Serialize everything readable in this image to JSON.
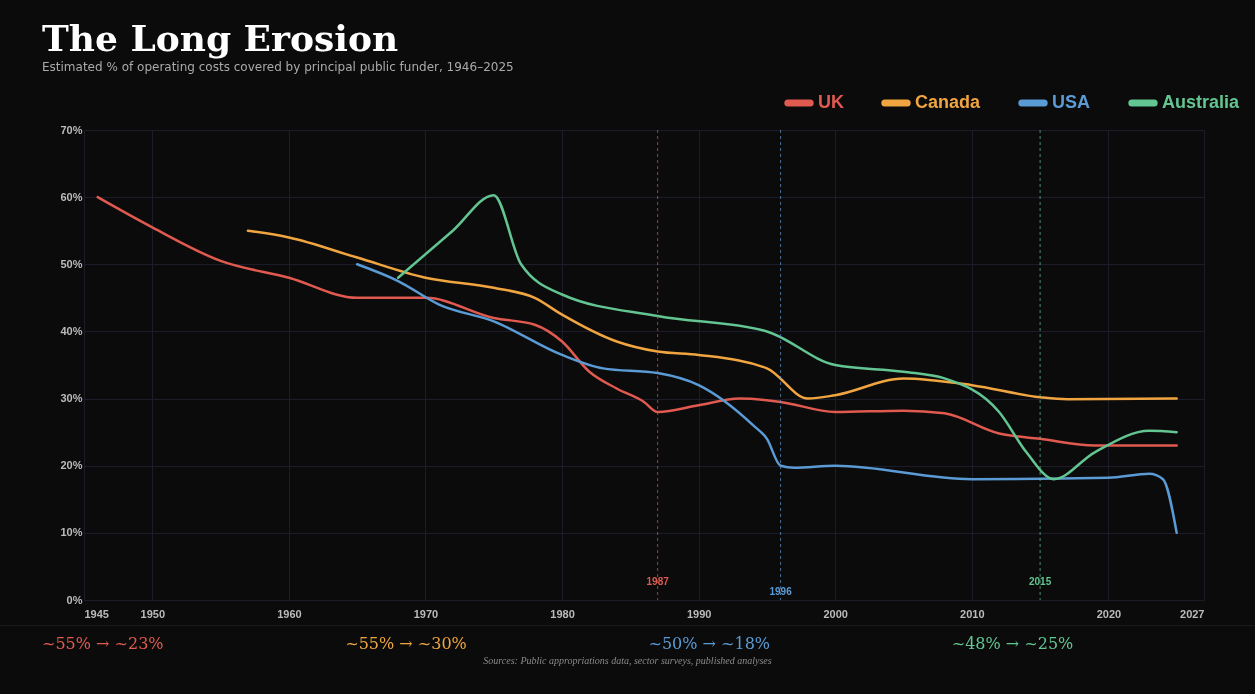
{
  "chart_data": {
    "type": "line",
    "title": "The Long Erosion",
    "subtitle": "Estimated % of operating costs covered by principal public funder, 1946–2025",
    "xlim": [
      1945,
      2027
    ],
    "xticks": [
      1945,
      1950,
      1960,
      1970,
      1980,
      1990,
      2000,
      2010,
      2020,
      2027
    ],
    "ylim": [
      0,
      70
    ],
    "yticks": [
      {
        "value": 0,
        "label": "0%"
      },
      {
        "value": 10,
        "label": "10%"
      },
      {
        "value": 20,
        "label": "20%"
      },
      {
        "value": 30,
        "label": "30%"
      },
      {
        "value": 40,
        "label": "40%"
      },
      {
        "value": 50,
        "label": "50%"
      },
      {
        "value": 60,
        "label": "60%"
      },
      {
        "value": 70,
        "label": "70%"
      }
    ],
    "grid": true,
    "legend": "top right",
    "line_style": "solid",
    "marker": "none",
    "series": [
      {
        "name": "UK",
        "color": "#e05a4f",
        "x": [
          1946,
          1950,
          1955,
          1960,
          1965,
          1970,
          1975,
          1978,
          1980,
          1982,
          1984,
          1986,
          1987,
          1990,
          1993,
          1996,
          2000,
          2005,
          2008,
          2012,
          2015,
          2019,
          2025
        ],
        "values": [
          60,
          55.5,
          50.5,
          48,
          45,
          45,
          42,
          41,
          38.5,
          34,
          31.5,
          29.5,
          28,
          29,
          30,
          29.5,
          28,
          28.2,
          27.8,
          24.8,
          24,
          23,
          23
        ]
      },
      {
        "name": "Canada",
        "color": "#f0a541",
        "x": [
          1957,
          1960,
          1965,
          1970,
          1975,
          1978,
          1980,
          1984,
          1987,
          1990,
          1995,
          1998,
          2000,
          2005,
          2010,
          2015,
          2017,
          2025
        ],
        "values": [
          55,
          54,
          51,
          48,
          46.5,
          45,
          42.5,
          38.5,
          37,
          36.5,
          34.5,
          30,
          30.5,
          33,
          32,
          30.2,
          29.9,
          30
        ]
      },
      {
        "name": "USA",
        "color": "#5b9bd5",
        "x": [
          1965,
          1968,
          1971,
          1975,
          1980,
          1983,
          1987,
          1990,
          1994,
          1995,
          1996,
          1997,
          2000,
          2010,
          2020,
          2023,
          2024,
          2025
        ],
        "values": [
          50,
          47.5,
          44,
          41.5,
          36.5,
          34.5,
          33.8,
          32,
          26,
          24,
          20,
          19.7,
          20,
          18,
          18.2,
          18.8,
          18,
          10
        ]
      },
      {
        "name": "Australia",
        "color": "#63c591",
        "x": [
          1968,
          1972,
          1975,
          1977,
          1980,
          1987,
          1995,
          2000,
          2005,
          2008,
          2012,
          2014,
          2016,
          2019,
          2023,
          2025
        ],
        "values": [
          48,
          55,
          60.3,
          50,
          45.5,
          42.3,
          40,
          35,
          34,
          33,
          28,
          22,
          18,
          22,
          25.2,
          25
        ]
      }
    ],
    "ref_lines": [
      {
        "axis": "x",
        "value": 1987,
        "label": "1987",
        "color": "#e05a4f",
        "line_style": "dashed"
      },
      {
        "axis": "x",
        "value": 1996,
        "label": "1996",
        "color": "#5b9bd5",
        "line_style": "dashed"
      },
      {
        "axis": "x",
        "value": 2015,
        "label": "2015",
        "color": "#63c591",
        "line_style": "dashed"
      }
    ],
    "annotations": [
      "~55% → ~23%",
      "~55% → ~30%",
      "~50% → ~18%",
      "~48% → ~25%",
      "Sources: Public appropriations data, sector surveys, published analyses"
    ]
  }
}
